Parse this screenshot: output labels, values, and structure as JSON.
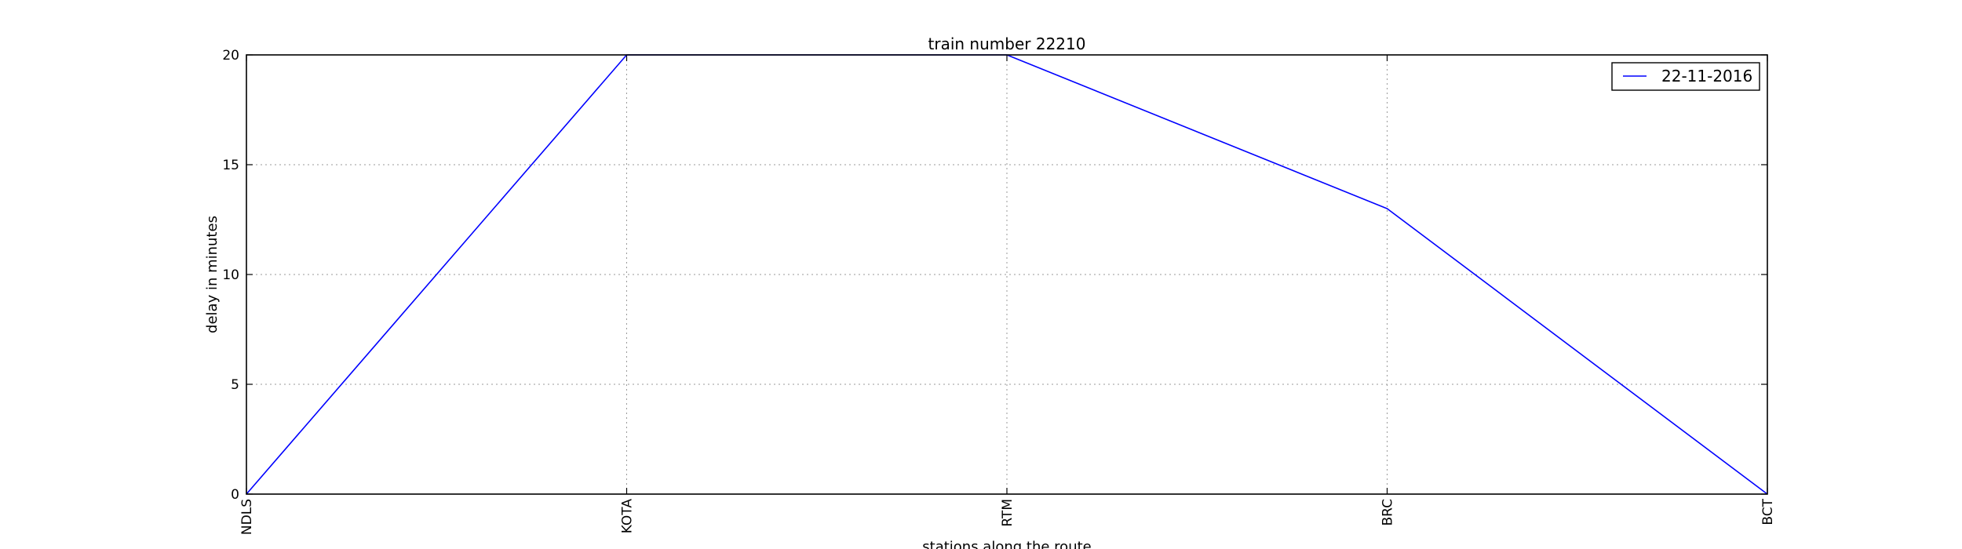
{
  "chart_data": {
    "type": "line",
    "title": "train number 22210",
    "xlabel": "stations along the route",
    "ylabel": "delay in minutes",
    "categories": [
      "NDLS",
      "KOTA",
      "RTM",
      "BRC",
      "BCT"
    ],
    "series": [
      {
        "name": "22-11-2016",
        "values": [
          0,
          20,
          20,
          13,
          0
        ],
        "color": "#0000ff"
      }
    ],
    "ylim": [
      0,
      20
    ],
    "yticks": [
      "0",
      "5",
      "10",
      "15",
      "20"
    ],
    "grid": true,
    "legend_position": "top-right"
  }
}
